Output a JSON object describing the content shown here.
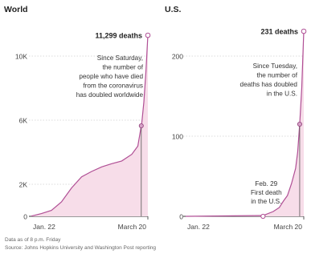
{
  "chart_data": [
    {
      "type": "area",
      "title": "World",
      "xlabel": "",
      "ylabel": "",
      "ylim": [
        0,
        12000
      ],
      "ytick_labels": [
        "0",
        "2K",
        "6K",
        "10K"
      ],
      "ytick_values": [
        0,
        2000,
        6000,
        10000
      ],
      "xtick_labels": [
        "Jan. 22",
        "March 20"
      ],
      "x": [
        0,
        5,
        10,
        15,
        20,
        25,
        30,
        35,
        40,
        45,
        50,
        53,
        55,
        56,
        57,
        58
      ],
      "values": [
        17,
        170,
        370,
        900,
        1770,
        2465,
        2800,
        3085,
        3285,
        3455,
        3870,
        4380,
        5860,
        7130,
        8970,
        11299
      ],
      "end_label": "11,299 deaths",
      "end_value": 11299,
      "marker_value": 5650,
      "annotation": "Since Saturday, the number of people who have died from the coronavirus has doubled worldwide",
      "fill_color": "#f7dde9",
      "line_color": "#b04f95"
    },
    {
      "type": "area",
      "title": "U.S.",
      "xlabel": "",
      "ylabel": "",
      "ylim": [
        0,
        240
      ],
      "ytick_labels": [
        "0",
        "100",
        "200"
      ],
      "ytick_values": [
        0,
        100,
        200
      ],
      "xtick_labels": [
        "Jan. 22",
        "March 20"
      ],
      "x": [
        0,
        38,
        43,
        46,
        48,
        50,
        52,
        54,
        55,
        56,
        57,
        58
      ],
      "values": [
        0,
        1,
        6,
        11,
        19,
        26,
        41,
        60,
        80,
        115,
        160,
        231
      ],
      "end_label": "231 deaths",
      "end_value": 231,
      "marker_value": 115,
      "first_death_x": 38,
      "first_death_label": "Feb. 29\nFirst death\nin the U.S.",
      "annotation": "Since Tuesday, the number of deaths has doubled in the U.S.",
      "fill_color": "#f7dde9",
      "line_color": "#b04f95"
    }
  ],
  "footer": {
    "line1": "Data as of 8 p.m. Friday",
    "line2": "Source: Johns Hopkins University and Washington Post reporting"
  }
}
